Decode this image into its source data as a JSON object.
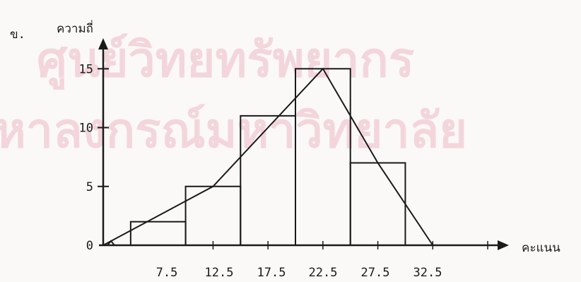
{
  "panel_label": "ข.",
  "watermark": {
    "line1": "ศูนย์วิทยทรัพยากร",
    "line2": "หาลงกรณ์มหาวิทยาลัย"
  },
  "chart_data": {
    "type": "bar",
    "title": "",
    "ylabel": "ความถี่",
    "xlabel": "คะแนน",
    "class_width": 5,
    "categories": [
      "7.5",
      "12.5",
      "17.5",
      "22.5",
      "27.5",
      "32.5"
    ],
    "x": [
      7.5,
      12.5,
      17.5,
      22.5,
      27.5,
      32.5
    ],
    "values": [
      2,
      5,
      11,
      15,
      7,
      0
    ],
    "xlim": [
      2.5,
      37.5
    ],
    "ylim": [
      0,
      17
    ],
    "yticks": [
      0,
      5,
      10,
      15
    ],
    "grid": false,
    "legend": "none",
    "polygon": {
      "type": "line",
      "x": [
        2.5,
        12.5,
        22.5,
        27.5,
        32.5
      ],
      "y": [
        0,
        5,
        15,
        7,
        0
      ]
    }
  }
}
